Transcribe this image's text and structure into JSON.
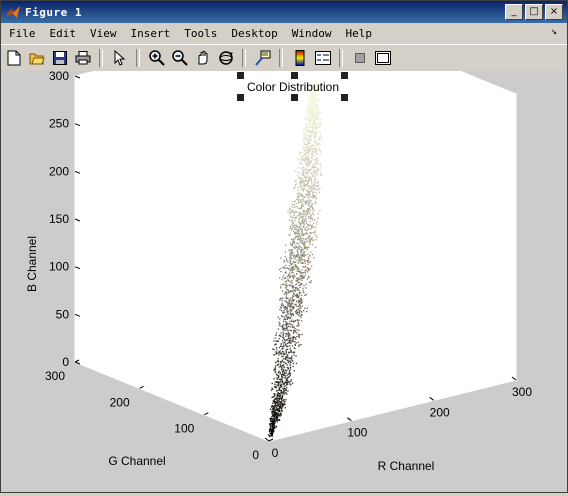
{
  "window": {
    "title": "Figure 1",
    "minimize_label": "_",
    "maximize_label": "□",
    "close_label": "×"
  },
  "menubar": {
    "items": [
      {
        "label": "File"
      },
      {
        "label": "Edit"
      },
      {
        "label": "View"
      },
      {
        "label": "Insert"
      },
      {
        "label": "Tools"
      },
      {
        "label": "Desktop"
      },
      {
        "label": "Window"
      },
      {
        "label": "Help"
      }
    ],
    "dock_arrow": "↘"
  },
  "toolbar": {
    "buttons": [
      "new-file",
      "open-file",
      "save",
      "print",
      "edit-plot-arrow",
      "zoom-in",
      "zoom-out",
      "pan-hand",
      "rotate-3d",
      "data-cursor",
      "colorbar",
      "legend",
      "hide-plot-tools",
      "show-plot-tools"
    ]
  },
  "chart_data": {
    "type": "scatter",
    "dimension": "3d",
    "title": "Color Distribution",
    "xlabel": "R Channel",
    "ylabel": "G Channel",
    "zlabel": "B Channel",
    "xlim": [
      0,
      300
    ],
    "ylim": [
      0,
      300
    ],
    "zlim": [
      0,
      300
    ],
    "xticks": [
      "0",
      "100",
      "200",
      "300"
    ],
    "yticks": [
      "0",
      "100",
      "200",
      "300"
    ],
    "zticks": [
      "0",
      "50",
      "100",
      "150",
      "200",
      "250",
      "300"
    ],
    "grid": false,
    "description_points": [
      {
        "r": 5,
        "g": 5,
        "b": 5
      },
      {
        "r": 40,
        "g": 35,
        "b": 30
      },
      {
        "r": 80,
        "g": 75,
        "b": 70
      },
      {
        "r": 120,
        "g": 115,
        "b": 105
      },
      {
        "r": 160,
        "g": 155,
        "b": 140
      },
      {
        "r": 200,
        "g": 195,
        "b": 180
      },
      {
        "r": 240,
        "g": 238,
        "b": 225
      },
      {
        "r": 255,
        "g": 255,
        "b": 255
      }
    ]
  }
}
